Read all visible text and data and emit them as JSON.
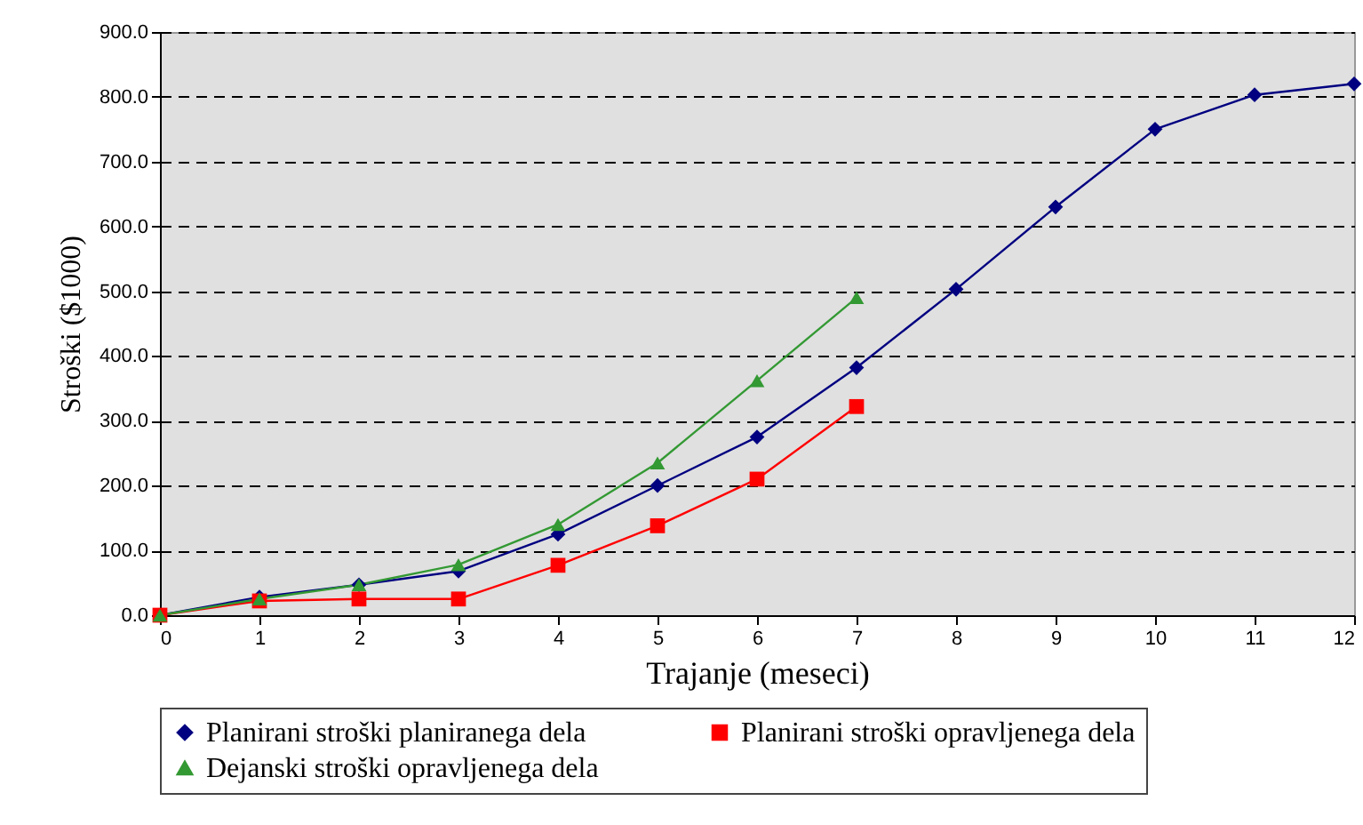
{
  "chart_data": {
    "type": "line",
    "xlabel": "Trajanje (meseci)",
    "ylabel": "Stroški ($1000)",
    "x": [
      0,
      1,
      2,
      3,
      4,
      5,
      6,
      7,
      8,
      9,
      10,
      11,
      12
    ],
    "xlim": [
      0,
      12
    ],
    "xticks": [
      0,
      1,
      2,
      3,
      4,
      5,
      6,
      7,
      8,
      9,
      10,
      11,
      12
    ],
    "ylim": [
      0,
      900
    ],
    "yticks": [
      {
        "value": 0,
        "label": "0.0"
      },
      {
        "value": 100,
        "label": "100.0"
      },
      {
        "value": 200,
        "label": "200.0"
      },
      {
        "value": 300,
        "label": "300.0"
      },
      {
        "value": 400,
        "label": "400.0"
      },
      {
        "value": 500,
        "label": "500.0"
      },
      {
        "value": 600,
        "label": "600.0"
      },
      {
        "value": 700,
        "label": "700.0"
      },
      {
        "value": 800,
        "label": "800.0"
      },
      {
        "value": 900,
        "label": "900.0"
      }
    ],
    "grid": "y",
    "legend": "bottom",
    "line_style": "solid",
    "series": [
      {
        "name": "Planirani stroški planiranega dela",
        "color": "#000080",
        "marker": "diamond",
        "values": [
          0,
          28,
          47,
          68,
          125,
          200,
          275,
          382,
          503,
          630,
          750,
          803,
          820
        ]
      },
      {
        "name": "Planirani stroški opravljenega dela",
        "color": "#ff0000",
        "marker": "square",
        "values": [
          0,
          22,
          25,
          25,
          77,
          138,
          210,
          322,
          null,
          null,
          null,
          null,
          null
        ]
      },
      {
        "name": "Dejanski stroški opravljenega dela",
        "color": "#339933",
        "marker": "triangle",
        "values": [
          0,
          25,
          47,
          78,
          140,
          235,
          362,
          490,
          null,
          null,
          null,
          null,
          null
        ]
      }
    ]
  }
}
